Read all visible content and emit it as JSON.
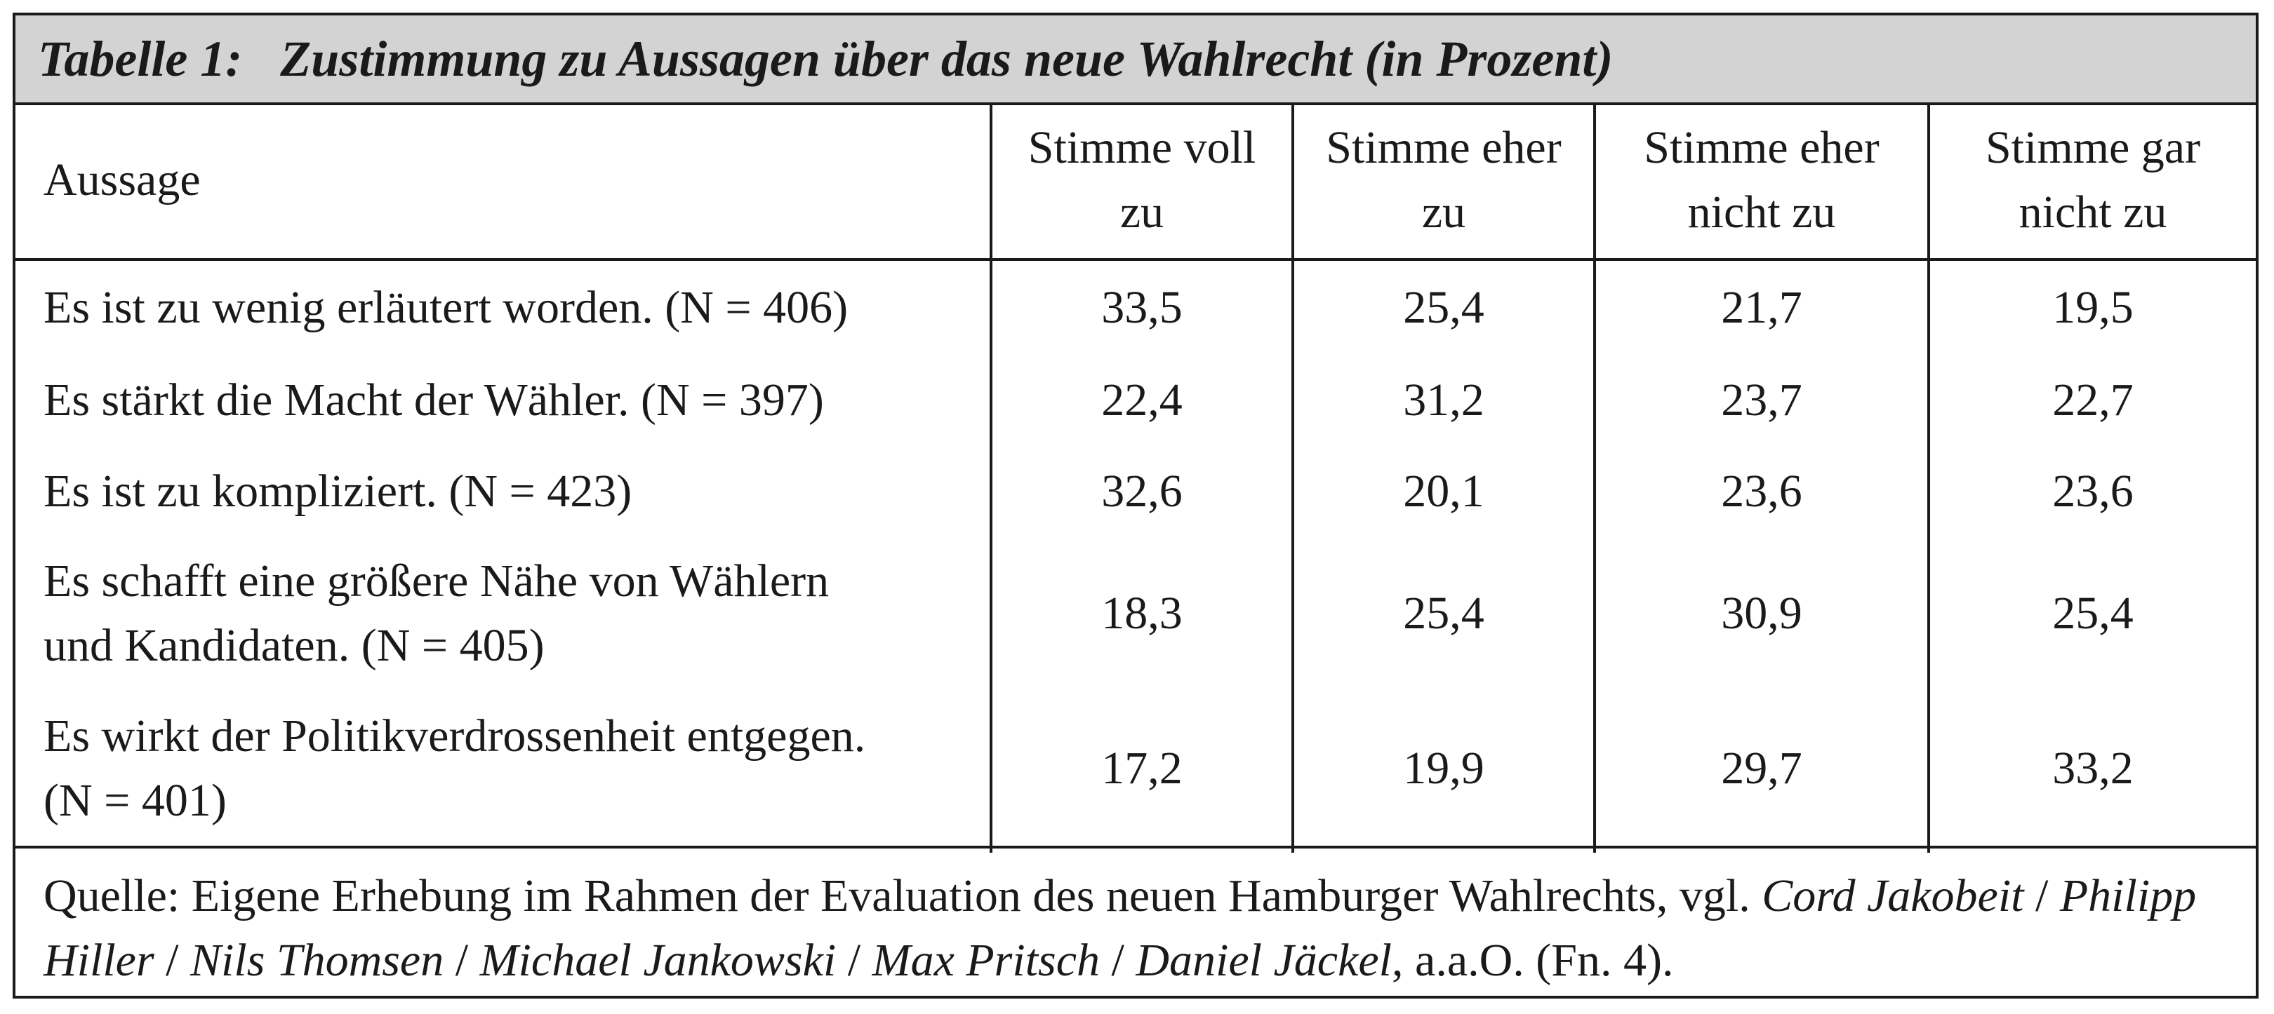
{
  "title": "Tabelle 1:   Zustimmung zu Aussagen über das neue Wahlrecht (in Prozent)",
  "columns": {
    "aussage": "Aussage",
    "voll": [
      "Stimme voll",
      "zu"
    ],
    "eher": [
      "Stimme eher",
      "zu"
    ],
    "eher_nicht": [
      "Stimme eher",
      "nicht zu"
    ],
    "gar_nicht": [
      "Stimme gar",
      "nicht zu"
    ]
  },
  "rows": [
    {
      "statement": [
        "Es ist zu wenig erläutert worden. (N = 406)"
      ],
      "values": [
        "33,5",
        "25,4",
        "21,7",
        "19,5"
      ]
    },
    {
      "statement": [
        "Es stärkt die Macht der Wähler. (N = 397)"
      ],
      "values": [
        "22,4",
        "31,2",
        "23,7",
        "22,7"
      ]
    },
    {
      "statement": [
        "Es ist zu kompliziert. (N = 423)"
      ],
      "values": [
        "32,6",
        "20,1",
        "23,6",
        "23,6"
      ]
    },
    {
      "statement": [
        "Es schafft eine größere Nähe von Wählern",
        "und Kandidaten. (N = 405)"
      ],
      "values": [
        "18,3",
        "25,4",
        "30,9",
        "25,4"
      ]
    },
    {
      "statement": [
        "Es wirkt der Politikverdrossenheit entgegen.",
        "(N = 401)"
      ],
      "values": [
        "17,2",
        "19,9",
        "29,7",
        "33,2"
      ]
    }
  ],
  "source": {
    "prefix": "Quelle: Eigene Erhebung im Rahmen der Evaluation des neuen Hamburger Wahlrechts, vgl. ",
    "author_1": "Cord Jakobeit",
    "sep_1": " / ",
    "author_2": "Philipp Hiller",
    "sep_2": " / ",
    "author_3": "Nils Thomsen",
    "sep_3": " / ",
    "author_4": "Michael Jankowski",
    "sep_4": " / ",
    "author_5": "Max Pritsch",
    "sep_5": " / ",
    "author_6": "Daniel Jäckel",
    "suffix": ", a.a.O. (Fn. 4)."
  },
  "colors": {
    "header_background": "#d3d3d3",
    "border": "#1a1a1a",
    "text": "#1a1a1a"
  }
}
